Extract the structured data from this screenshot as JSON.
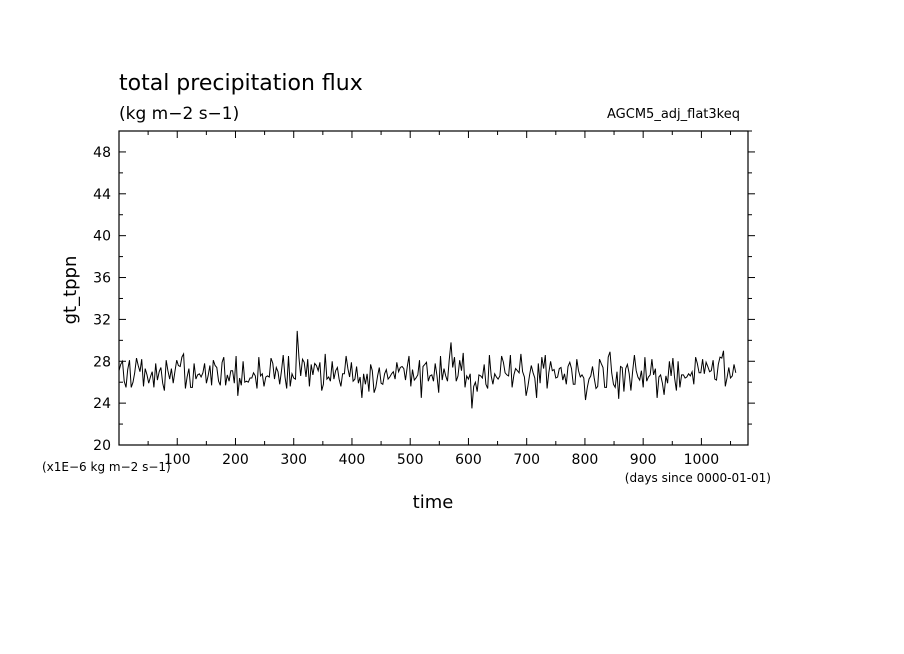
{
  "chart_data": {
    "type": "line",
    "title": "total precipitation flux",
    "subtitle": "(kg m−2 s−1)",
    "dataset_label": "AGCM5_adj_flat3keq",
    "xlabel": "time",
    "xunit": "(days since 0000-01-01)",
    "ylabel": "gt_tppn",
    "yunit": "(x1E−6 kg m−2 s−1)",
    "xlim": [
      0,
      1080
    ],
    "ylim": [
      20,
      50
    ],
    "x_ticks": [
      100,
      200,
      300,
      400,
      500,
      600,
      700,
      800,
      900,
      1000
    ],
    "y_ticks": [
      20,
      24,
      28,
      32,
      36,
      40,
      44,
      48
    ],
    "grid": false,
    "series": [
      {
        "x_start": 0,
        "x_step": 3,
        "values": [
          27.1,
          27.7,
          28.0,
          26.1,
          25.5,
          27.2,
          28.1,
          25.5,
          26.0,
          26.9,
          28.3,
          27.6,
          27.0,
          28.2,
          25.6,
          27.3,
          26.7,
          25.9,
          26.5,
          27.0,
          25.5,
          27.8,
          26.2,
          27.0,
          27.4,
          25.9,
          25.2,
          28.1,
          27.1,
          26.3,
          27.3,
          25.9,
          27.0,
          28.1,
          27.6,
          27.5,
          28.4,
          28.7,
          25.4,
          26.5,
          27.3,
          25.5,
          25.5,
          27.8,
          26.3,
          26.7,
          26.8,
          26.5,
          26.9,
          27.8,
          25.9,
          26.6,
          27.6,
          25.7,
          28.1,
          27.6,
          27.4,
          26.1,
          25.7,
          27.9,
          28.4,
          25.7,
          26.7,
          26.1,
          27.1,
          27.1,
          25.9,
          28.5,
          24.7,
          26.4,
          25.7,
          28.0,
          26.0,
          26.1,
          26.0,
          26.4,
          26.4,
          26.9,
          26.6,
          25.4,
          28.4,
          26.6,
          26.8,
          25.6,
          26.5,
          26.6,
          26.5,
          28.3,
          27.8,
          26.3,
          27.4,
          27.0,
          25.8,
          27.1,
          28.6,
          26.5,
          25.4,
          28.5,
          25.6,
          26.8,
          26.4,
          26.3,
          30.9,
          28.3,
          26.6,
          28.2,
          27.9,
          26.5,
          28.2,
          25.6,
          27.7,
          26.7,
          27.8,
          27.6,
          27.1,
          27.9,
          25.2,
          25.8,
          28.7,
          26.3,
          26.5,
          26.1,
          28.0,
          26.3,
          27.1,
          27.4,
          26.3,
          25.6,
          26.8,
          26.8,
          28.5,
          27.3,
          26.5,
          27.9,
          26.1,
          26.3,
          27.5,
          25.9,
          26.5,
          24.5,
          26.8,
          25.8,
          26.8,
          25.1,
          27.7,
          27.1,
          25.0,
          25.5,
          26.6,
          27.4,
          25.9,
          25.8,
          26.8,
          27.2,
          26.3,
          26.5,
          26.8,
          27.0,
          26.3,
          27.9,
          27.0,
          27.4,
          27.5,
          27.3,
          26.2,
          27.5,
          28.5,
          25.6,
          27.2,
          26.2,
          26.4,
          26.7,
          28.1,
          24.5,
          27.5,
          27.7,
          27.9,
          26.1,
          26.6,
          26.7,
          26.1,
          27.8,
          26.6,
          25.0,
          28.5,
          26.2,
          27.3,
          26.6,
          26.1,
          28.1,
          29.8,
          27.4,
          28.4,
          26.1,
          26.6,
          28.1,
          27.1,
          28.8,
          25.5,
          26.6,
          26.3,
          26.8,
          23.5,
          25.6,
          26.0,
          25.1,
          26.7,
          26.6,
          26.4,
          27.7,
          25.8,
          25.4,
          28.6,
          26.6,
          25.8,
          26.8,
          26.5,
          26.3,
          26.6,
          28.5,
          27.9,
          26.9,
          26.7,
          26.6,
          28.6,
          25.5,
          26.7,
          27.3,
          27.1,
          26.9,
          28.7,
          27.0,
          26.5,
          24.7,
          25.6,
          26.7,
          27.6,
          26.9,
          26.4,
          24.5,
          27.8,
          25.9,
          28.4,
          27.3,
          28.6,
          25.4,
          26.9,
          28.0,
          27.1,
          27.2,
          26.4,
          26.5,
          27.3,
          27.4,
          26.2,
          26.8,
          25.8,
          27.5,
          27.9,
          27.3,
          25.8,
          25.8,
          28.2,
          27.1,
          26.5,
          26.7,
          26.4,
          24.3,
          25.5,
          26.3,
          26.6,
          27.5,
          26.4,
          25.4,
          25.6,
          28.2,
          27.8,
          27.4,
          25.5,
          25.5,
          28.4,
          28.9,
          26.9,
          25.8,
          25.5,
          27.0,
          24.4,
          27.5,
          27.4,
          25.1,
          27.3,
          27.7,
          26.8,
          25.2,
          27.1,
          28.6,
          27.1,
          26.5,
          26.2,
          27.1,
          25.5,
          28.4,
          26.1,
          26.5,
          26.7,
          28.2,
          26.7,
          27.3,
          24.5,
          26.5,
          26.7,
          25.9,
          24.8,
          26.6,
          25.9,
          28.0,
          26.6,
          28.3,
          26.4,
          25.2,
          28.0,
          25.5,
          26.7,
          26.7,
          26.4,
          26.5,
          26.8,
          26.6,
          27.0,
          25.8,
          28.4,
          27.8,
          26.9,
          26.9,
          28.2,
          26.8,
          27.9,
          27.5,
          27.0,
          27.1,
          28.1,
          26.3,
          26.2,
          27.7,
          28.4,
          28.3,
          29.0,
          25.6,
          26.4,
          27.4,
          26.4,
          26.6,
          27.7,
          26.9
        ]
      }
    ]
  }
}
